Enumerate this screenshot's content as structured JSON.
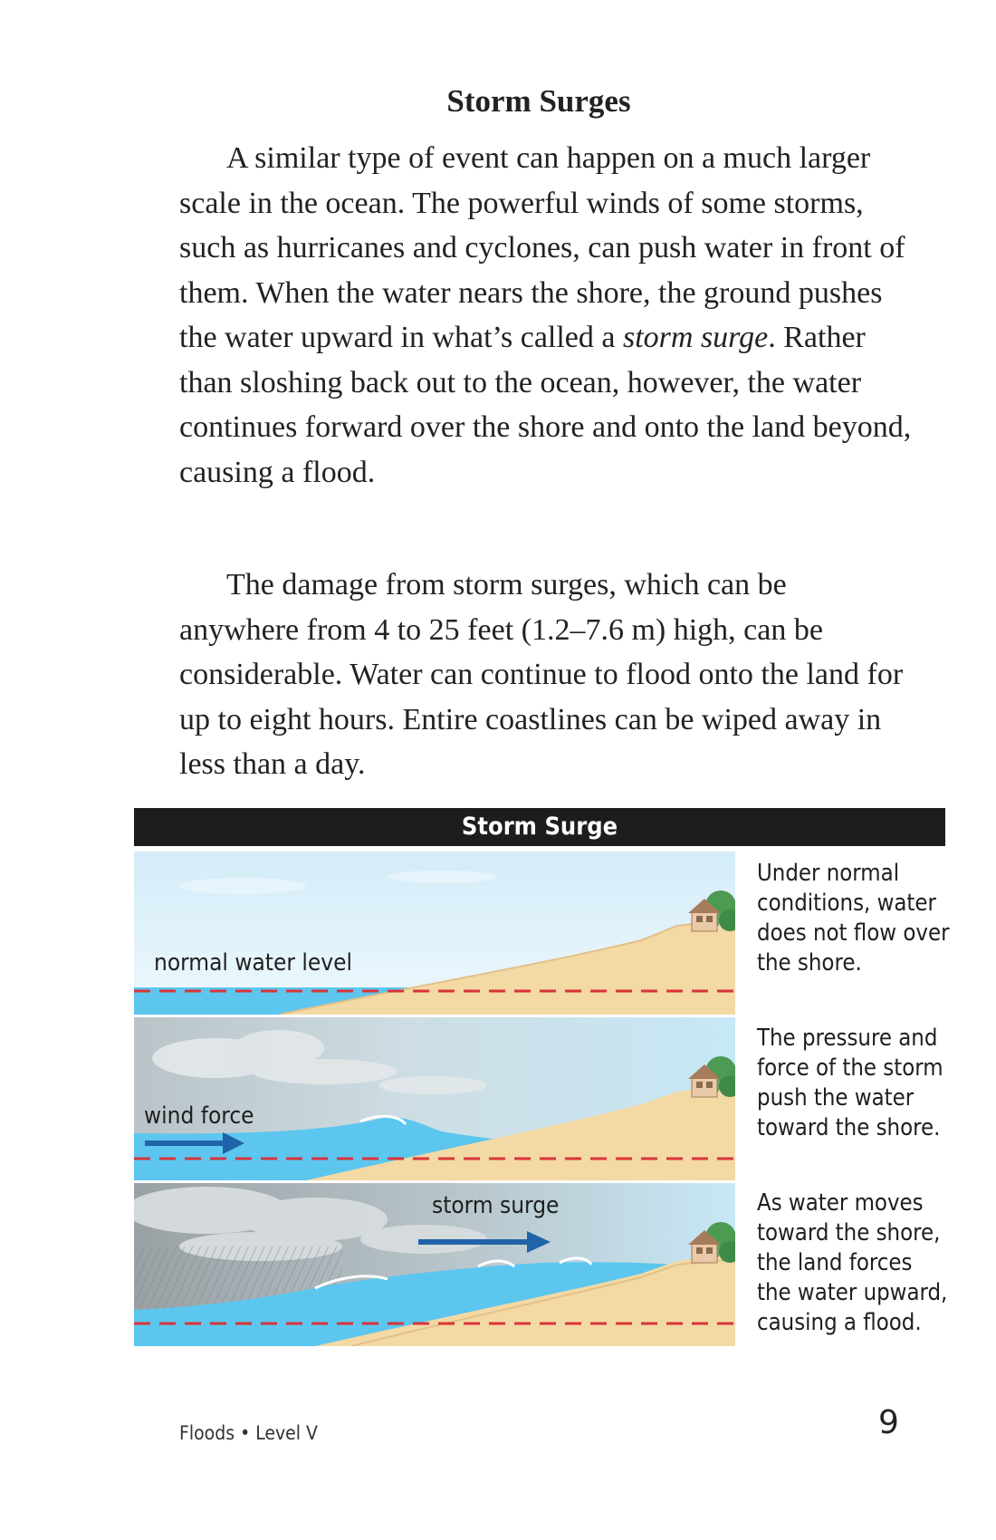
{
  "heading": "Storm Surges",
  "paragraph1": {
    "before": "A similar type of event can happen on a much larger scale in the ocean. The powerful winds of some storms, such as hurricanes and cyclones, can push water in front of them. When the water nears the shore, the ground pushes the water upward in what’s called a ",
    "term": "storm surge",
    "after": ". Rather than sloshing back out to the ocean, however, the water continues forward over the shore and onto the land beyond, causing a flood."
  },
  "paragraph2": "The damage from storm surges, which can be anywhere from 4 to 25 feet (1.2–7.6 m) high, can be considerable. Water can continue to flood onto the land for up to eight hours. Entire coastlines can be wiped away in less than a day.",
  "figure": {
    "title": "Storm Surge",
    "panels": [
      {
        "label": "normal water level",
        "caption": "Under normal conditions, water does not flow over the shore."
      },
      {
        "label": "wind force",
        "caption": "The pressure and force of the storm push the water toward the shore."
      },
      {
        "label": "storm surge",
        "caption": "As water moves toward the shore, the land forces the water upward, causing a flood."
      }
    ],
    "colors": {
      "sand": "#f3d9a4",
      "water": "#5cc6ef",
      "dash": "#d8343a",
      "arrow": "#2163a8"
    }
  },
  "footer": "Floods • Level V",
  "page_number": "9"
}
